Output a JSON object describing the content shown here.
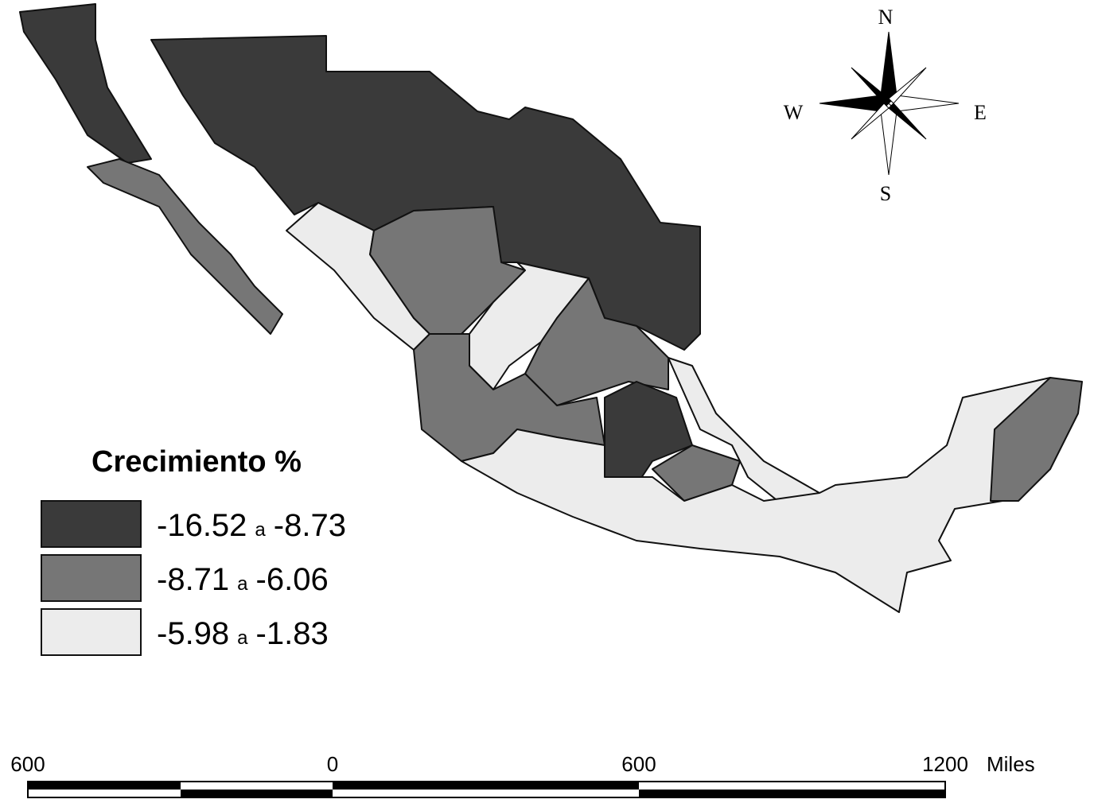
{
  "legend": {
    "title": "Crecimiento %",
    "classes": [
      {
        "from": "-16.52",
        "sep": "a",
        "to": "-8.73",
        "color": "#3a3a3a"
      },
      {
        "from": "-8.71",
        "sep": "a",
        "to": "-6.06",
        "color": "#767676"
      },
      {
        "from": "-5.98",
        "sep": "a",
        "to": "-1.83",
        "color": "#ececec"
      }
    ]
  },
  "compass": {
    "north": "N",
    "south": "S",
    "east": "E",
    "west": "W"
  },
  "scale_bar": {
    "labels": [
      "600",
      "0",
      "600",
      "1200"
    ],
    "unit": "Miles"
  }
}
